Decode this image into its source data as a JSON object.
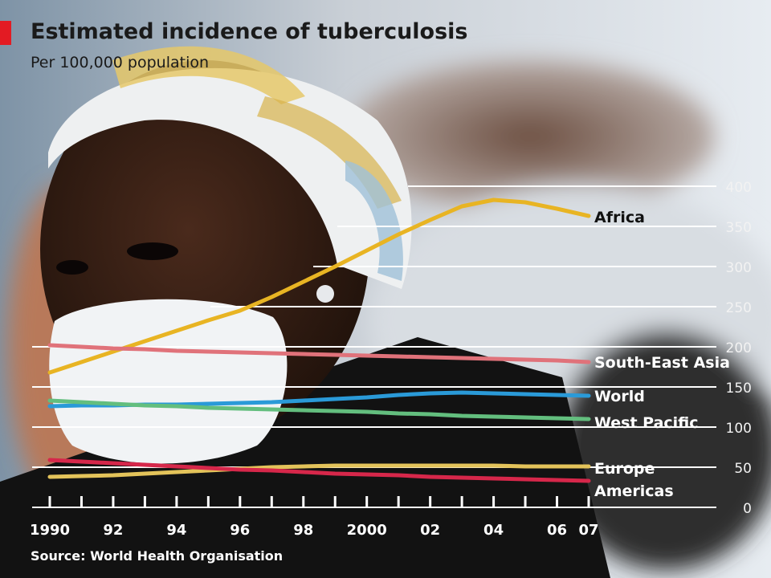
{
  "header": {
    "title": "Estimated incidence of tuberculosis",
    "subtitle": "Per 100,000 population",
    "source": "Source: World Health Organisation"
  },
  "colors": {
    "accent": "#e31b23",
    "africa": "#e8b423",
    "south_east_asia": "#e0727a",
    "world": "#2a9ad8",
    "west_pacific": "#63be7e",
    "europe": "#e3c35a",
    "americas": "#d6274a"
  },
  "chart_data": {
    "type": "line",
    "title": "Estimated incidence of tuberculosis",
    "subtitle": "Per 100,000 population",
    "x": [
      1990,
      1991,
      1992,
      1993,
      1994,
      1995,
      1996,
      1997,
      1998,
      1999,
      2000,
      2001,
      2002,
      2003,
      2004,
      2005,
      2006,
      2007
    ],
    "xticks": [
      {
        "value": 1990,
        "label": "1990"
      },
      {
        "value": 1992,
        "label": "92"
      },
      {
        "value": 1994,
        "label": "94"
      },
      {
        "value": 1996,
        "label": "96"
      },
      {
        "value": 1998,
        "label": "98"
      },
      {
        "value": 2000,
        "label": "2000"
      },
      {
        "value": 2002,
        "label": "02"
      },
      {
        "value": 2004,
        "label": "04"
      },
      {
        "value": 2006,
        "label": "06"
      },
      {
        "value": 2007,
        "label": "07"
      }
    ],
    "yticks": [
      0,
      50,
      100,
      150,
      200,
      250,
      300,
      350,
      400
    ],
    "xlim": [
      1990,
      2007
    ],
    "ylim": [
      0,
      400
    ],
    "grid": true,
    "series": [
      {
        "name": "Africa",
        "color": "#e8b423",
        "values": [
          168,
          181,
          194,
          207,
          220,
          233,
          245,
          262,
          281,
          300,
          320,
          340,
          358,
          375,
          383,
          380,
          372,
          363
        ]
      },
      {
        "name": "South-East Asia",
        "color": "#e0727a",
        "values": [
          202,
          200,
          198,
          197,
          195,
          194,
          193,
          192,
          191,
          190,
          189,
          188,
          187,
          186,
          185,
          184,
          183,
          181
        ]
      },
      {
        "name": "World",
        "color": "#2a9ad8",
        "values": [
          126,
          127,
          127,
          128,
          128,
          129,
          130,
          131,
          133,
          135,
          137,
          140,
          142,
          143,
          142,
          141,
          140,
          139
        ]
      },
      {
        "name": "West Pacific",
        "color": "#63be7e",
        "values": [
          133,
          131,
          129,
          127,
          126,
          124,
          123,
          122,
          121,
          120,
          119,
          117,
          116,
          114,
          113,
          112,
          111,
          110
        ]
      },
      {
        "name": "Europe",
        "color": "#e3c35a",
        "values": [
          38,
          39,
          40,
          42,
          44,
          46,
          48,
          50,
          51,
          52,
          52,
          52,
          52,
          52,
          52,
          51,
          51,
          51
        ]
      },
      {
        "name": "Americas",
        "color": "#d6274a",
        "values": [
          59,
          57,
          55,
          53,
          51,
          49,
          47,
          46,
          44,
          42,
          41,
          40,
          38,
          37,
          36,
          35,
          34,
          33
        ]
      }
    ],
    "labels": [
      {
        "series": "Africa",
        "text": "Africa",
        "y": 362
      },
      {
        "series": "South-East Asia",
        "text": "South-East Asia",
        "y": 181
      },
      {
        "series": "World",
        "text": "World",
        "y": 139
      },
      {
        "series": "West Pacific",
        "text": "West Pacific",
        "y": 106
      },
      {
        "series": "Europe",
        "text": "Europe",
        "y": 49
      },
      {
        "series": "Americas",
        "text": "Americas",
        "y": 21
      }
    ]
  }
}
